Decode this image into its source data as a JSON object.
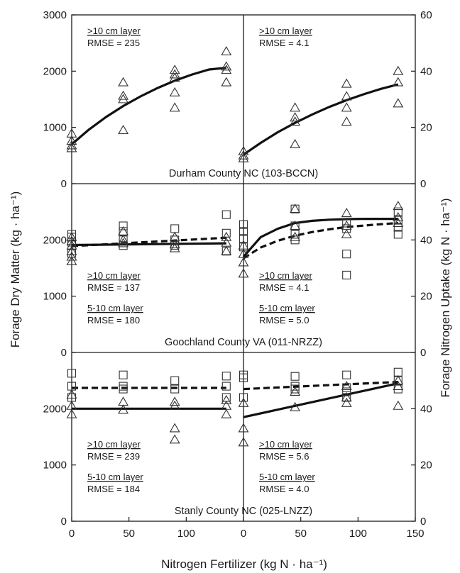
{
  "chart_data": {
    "type": "scatter",
    "xlabel": "Nitrogen Fertilizer (kg N · ha⁻¹)",
    "ylabel_left": "Forage Dry Matter (kg · ha⁻¹)",
    "ylabel_right": "Forage Nitrogen Uptake (kg N · ha⁻¹)",
    "left_x_ticks": [
      "0",
      "50",
      "100"
    ],
    "right_x_ticks": [
      "0",
      "50",
      "100",
      "150"
    ],
    "xlim": [
      0,
      150
    ],
    "left_y": {
      "lim": [
        0,
        3000
      ],
      "ticks": [
        {
          "value": 0,
          "label": "0"
        },
        {
          "value": 1000,
          "label": "1000"
        },
        {
          "value": 2000,
          "label": "2000"
        },
        {
          "value": 3000,
          "label": "3000"
        }
      ],
      "panel_ticks": [
        {
          "value": 1000,
          "label": "1000"
        },
        {
          "value": 2000,
          "label": "2000"
        }
      ]
    },
    "right_y": {
      "lim": [
        0,
        60
      ],
      "ticks": [
        {
          "value": 0,
          "label": "0"
        },
        {
          "value": 20,
          "label": "20"
        },
        {
          "value": 40,
          "label": "40"
        },
        {
          "value": 60,
          "label": "60"
        }
      ],
      "panel_ticks": [
        {
          "value": 20,
          "label": "20"
        },
        {
          "value": 40,
          "label": "40"
        }
      ]
    },
    "panels": [
      {
        "county": "Durham County NC (103-BCCN)",
        "left": {
          "annotations": [
            {
              "layer": ">10 cm layer",
              "rmse": "RMSE = 235"
            }
          ],
          "points": {
            "gt10": [
              [
                0,
                890
              ],
              [
                0,
                760
              ],
              [
                0,
                680
              ],
              [
                0,
                630
              ],
              [
                45,
                1800
              ],
              [
                45,
                1560
              ],
              [
                45,
                1500
              ],
              [
                45,
                950
              ],
              [
                90,
                2020
              ],
              [
                90,
                1940
              ],
              [
                90,
                1880
              ],
              [
                90,
                1620
              ],
              [
                90,
                1350
              ],
              [
                135,
                2350
              ],
              [
                135,
                2080
              ],
              [
                135,
                2020
              ],
              [
                135,
                1800
              ]
            ]
          },
          "fits": [
            {
              "layer": "gt10",
              "style": "solid",
              "x": [
                0,
                15,
                30,
                45,
                60,
                75,
                90,
                105,
                120,
                135
              ],
              "y": [
                700,
                960,
                1185,
                1380,
                1550,
                1700,
                1830,
                1940,
                2030,
                2060
              ]
            }
          ]
        },
        "right": {
          "annotations": [
            {
              "layer": ">10 cm layer",
              "rmse": "RMSE = 4.1"
            }
          ],
          "points": {
            "gt10": [
              [
                0,
                11.5
              ],
              [
                0,
                10
              ],
              [
                0,
                9
              ],
              [
                45,
                27
              ],
              [
                45,
                23.5
              ],
              [
                45,
                22
              ],
              [
                45,
                14
              ],
              [
                90,
                35.5
              ],
              [
                90,
                31
              ],
              [
                90,
                27
              ],
              [
                90,
                22
              ],
              [
                135,
                40
              ],
              [
                135,
                36
              ],
              [
                135,
                28.5
              ]
            ]
          },
          "fits": [
            {
              "layer": "gt10",
              "style": "solid",
              "x": [
                0,
                15,
                30,
                45,
                60,
                75,
                90,
                105,
                120,
                135
              ],
              "y": [
                10.3,
                14.5,
                18.3,
                21.6,
                24.6,
                27.3,
                29.7,
                31.8,
                33.7,
                35.3
              ]
            }
          ]
        }
      },
      {
        "county": "Goochland County VA (011-NRZZ)",
        "left": {
          "annotations": [
            {
              "layer": ">10 cm layer",
              "rmse": "RMSE = 137"
            },
            {
              "layer": "5-10 cm layer",
              "rmse": "RMSE = 180"
            }
          ],
          "points": {
            "gt10": [
              [
                0,
                2050
              ],
              [
                0,
                1980
              ],
              [
                0,
                1900
              ],
              [
                0,
                1800
              ],
              [
                0,
                1700
              ],
              [
                0,
                1620
              ],
              [
                45,
                2150
              ],
              [
                45,
                2000
              ],
              [
                45,
                1940
              ],
              [
                90,
                2050
              ],
              [
                90,
                1920
              ],
              [
                90,
                1850
              ],
              [
                135,
                2050
              ],
              [
                135,
                1950
              ],
              [
                135,
                1800
              ]
            ],
            "cm5_10": [
              [
                0,
                2100
              ],
              [
                0,
                2050
              ],
              [
                0,
                1960
              ],
              [
                0,
                1760
              ],
              [
                45,
                2250
              ],
              [
                45,
                2150
              ],
              [
                45,
                2000
              ],
              [
                45,
                1900
              ],
              [
                90,
                2200
              ],
              [
                90,
                2000
              ],
              [
                90,
                1900
              ],
              [
                135,
                2450
              ],
              [
                135,
                2120
              ],
              [
                135,
                1800
              ]
            ]
          },
          "fits": [
            {
              "layer": "gt10",
              "style": "solid",
              "x": [
                0,
                135
              ],
              "y": [
                1910,
                1940
              ]
            },
            {
              "layer": "cm5_10",
              "style": "dashed",
              "x": [
                0,
                135
              ],
              "y": [
                1890,
                2040
              ]
            }
          ]
        },
        "right": {
          "annotations": [
            {
              "layer": ">10 cm layer",
              "rmse": "RMSE = 4.1"
            },
            {
              "layer": "5-10 cm layer",
              "rmse": "RMSE = 5.0"
            }
          ],
          "points": {
            "gt10": [
              [
                0,
                38
              ],
              [
                0,
                35
              ],
              [
                0,
                32
              ],
              [
                0,
                28
              ],
              [
                45,
                51
              ],
              [
                45,
                45
              ],
              [
                45,
                41
              ],
              [
                90,
                49.5
              ],
              [
                90,
                45
              ],
              [
                90,
                42
              ],
              [
                135,
                52
              ],
              [
                135,
                48
              ],
              [
                135,
                46
              ]
            ],
            "cm5_10": [
              [
                0,
                45.5
              ],
              [
                0,
                43
              ],
              [
                0,
                40.5
              ],
              [
                0,
                37.5
              ],
              [
                45,
                51
              ],
              [
                45,
                45
              ],
              [
                45,
                42
              ],
              [
                45,
                40
              ],
              [
                90,
                46
              ],
              [
                90,
                44
              ],
              [
                90,
                35
              ],
              [
                90,
                27.5
              ],
              [
                135,
                50
              ],
              [
                135,
                47
              ],
              [
                135,
                44.5
              ],
              [
                135,
                42
              ]
            ]
          },
          "fits": [
            {
              "layer": "gt10",
              "style": "solid",
              "x": [
                0,
                15,
                30,
                45,
                60,
                75,
                90,
                105,
                120,
                135
              ],
              "y": [
                34,
                41,
                44,
                46,
                46.8,
                47.2,
                47.4,
                47.5,
                47.5,
                47.5
              ]
            },
            {
              "layer": "cm5_10",
              "style": "dashed",
              "x": [
                0,
                15,
                30,
                45,
                60,
                75,
                90,
                105,
                120,
                135
              ],
              "y": [
                33.5,
                37.3,
                39.7,
                41.5,
                42.8,
                43.8,
                44.6,
                45.1,
                45.6,
                46
              ]
            }
          ]
        }
      },
      {
        "county": "Stanly County NC (025-LNZZ)",
        "left": {
          "annotations": [
            {
              "layer": ">10 cm layer",
              "rmse": "RMSE = 239"
            },
            {
              "layer": "5-10 cm layer",
              "rmse": "RMSE = 184"
            }
          ],
          "points": {
            "gt10": [
              [
                0,
                2250
              ],
              [
                0,
                2050
              ],
              [
                0,
                1900
              ],
              [
                45,
                2120
              ],
              [
                45,
                1980
              ],
              [
                90,
                2120
              ],
              [
                90,
                2050
              ],
              [
                90,
                1650
              ],
              [
                90,
                1450
              ],
              [
                135,
                2150
              ],
              [
                135,
                2050
              ],
              [
                135,
                1900
              ]
            ],
            "cm5_10": [
              [
                0,
                2630
              ],
              [
                0,
                2400
              ],
              [
                0,
                2200
              ],
              [
                45,
                2600
              ],
              [
                45,
                2400
              ],
              [
                45,
                2350
              ],
              [
                90,
                2500
              ],
              [
                90,
                2350
              ],
              [
                135,
                2580
              ],
              [
                135,
                2400
              ],
              [
                135,
                2200
              ]
            ]
          },
          "fits": [
            {
              "layer": "gt10",
              "style": "solid",
              "x": [
                0,
                135
              ],
              "y": [
                2000,
                2000
              ]
            },
            {
              "layer": "cm5_10",
              "style": "dashed",
              "x": [
                0,
                135
              ],
              "y": [
                2370,
                2370
              ]
            }
          ]
        },
        "right": {
          "annotations": [
            {
              "layer": ">10 cm layer",
              "rmse": "RMSE = 5.6"
            },
            {
              "layer": "5-10 cm layer",
              "rmse": "RMSE = 4.0"
            }
          ],
          "points": {
            "gt10": [
              [
                0,
                42
              ],
              [
                0,
                33
              ],
              [
                0,
                28
              ],
              [
                45,
                46
              ],
              [
                45,
                40.5
              ],
              [
                90,
                48
              ],
              [
                90,
                44
              ],
              [
                90,
                42
              ],
              [
                135,
                50
              ],
              [
                135,
                48
              ],
              [
                135,
                41
              ]
            ],
            "cm5_10": [
              [
                0,
                52
              ],
              [
                0,
                51
              ],
              [
                0,
                44
              ],
              [
                45,
                51.5
              ],
              [
                45,
                48
              ],
              [
                45,
                47
              ],
              [
                90,
                52
              ],
              [
                90,
                47.5
              ],
              [
                90,
                46
              ],
              [
                90,
                44
              ],
              [
                135,
                53
              ],
              [
                135,
                50
              ],
              [
                135,
                47
              ]
            ]
          },
          "fits": [
            {
              "layer": "gt10",
              "style": "solid",
              "x": [
                0,
                135
              ],
              "y": [
                37,
                49
              ]
            },
            {
              "layer": "cm5_10",
              "style": "dashed",
              "x": [
                0,
                135
              ],
              "y": [
                47,
                49.5
              ]
            }
          ]
        }
      }
    ]
  }
}
